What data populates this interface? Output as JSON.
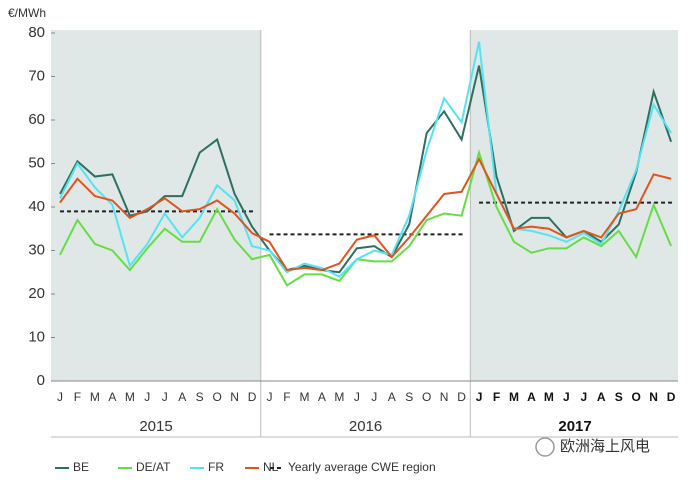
{
  "chart_data": {
    "type": "line",
    "y_label": "€/MWh",
    "categories": [
      "J",
      "F",
      "M",
      "A",
      "M",
      "J",
      "J",
      "A",
      "S",
      "O",
      "N",
      "D",
      "J",
      "F",
      "M",
      "A",
      "M",
      "J",
      "J",
      "A",
      "S",
      "O",
      "N",
      "D",
      "J",
      "F",
      "M",
      "A",
      "M",
      "J",
      "J",
      "A",
      "S",
      "O",
      "N",
      "D"
    ],
    "years": [
      "2015",
      "2016",
      "2017"
    ],
    "shaded_years": [
      0,
      2
    ],
    "emphasized_year": 2,
    "ylim": [
      0,
      80
    ],
    "yticks": [
      0,
      10,
      20,
      30,
      40,
      50,
      60,
      70,
      80
    ],
    "series": [
      {
        "name": "BE",
        "color": "#2f6f63",
        "values": [
          43,
          50.5,
          47,
          47.5,
          38,
          39,
          42.5,
          42.5,
          52.5,
          55.5,
          43,
          35.5,
          30,
          25.5,
          26.5,
          25.5,
          25,
          30.5,
          31,
          28.5,
          36,
          57,
          62,
          55.5,
          72.5,
          47,
          34.5,
          37.5,
          37.5,
          33,
          34.5,
          32,
          36,
          48,
          66.5,
          55
        ]
      },
      {
        "name": "DE/AT",
        "color": "#66dd44",
        "values": [
          29,
          37,
          31.5,
          30,
          25.5,
          30.5,
          35,
          32,
          32,
          39.5,
          32.5,
          28,
          29,
          22,
          24.5,
          24.5,
          23,
          28,
          27.5,
          27.5,
          31,
          37,
          38.5,
          38,
          52.5,
          40,
          32,
          29.5,
          30.5,
          30.5,
          33,
          31,
          34.5,
          28.5,
          40.5,
          31
        ]
      },
      {
        "name": "FR",
        "color": "#55e3f2",
        "values": [
          42,
          50,
          44.5,
          40.5,
          26.5,
          31.5,
          38.5,
          33,
          37.5,
          45,
          41.5,
          31,
          30,
          25,
          27,
          26,
          24,
          28,
          30,
          29,
          38,
          53,
          65,
          59.5,
          78,
          43,
          35,
          34.5,
          33.5,
          32,
          34,
          31.5,
          39,
          48.5,
          63.5,
          57
        ]
      },
      {
        "name": "NL",
        "color": "#e0541e",
        "values": [
          41,
          46.5,
          42.5,
          41.5,
          37.5,
          39.5,
          42,
          39,
          39.5,
          41.5,
          38.5,
          34,
          32,
          25.5,
          26,
          25.5,
          27,
          32.5,
          33.5,
          28.5,
          33,
          38,
          43,
          43.5,
          51,
          43,
          35,
          35.5,
          35,
          33,
          34.5,
          33,
          38.5,
          39.5,
          47.5,
          46.5
        ]
      }
    ],
    "yearly_average": {
      "name": "Yearly average CWE region",
      "color": "#222222",
      "values": [
        39,
        33.7,
        41
      ]
    },
    "watermark": "欧洲海上风电"
  }
}
